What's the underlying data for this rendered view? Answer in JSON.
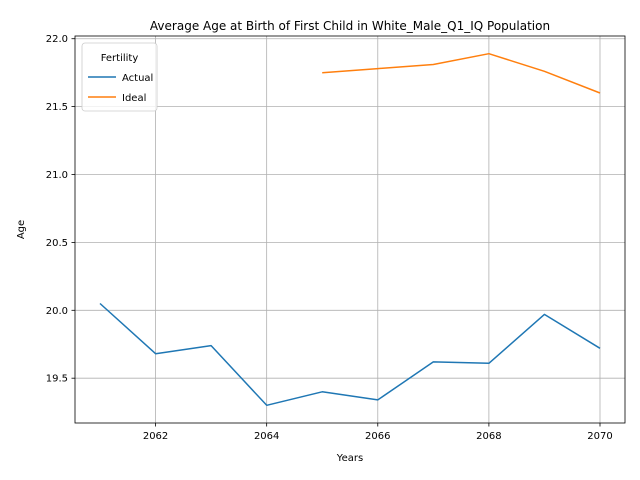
{
  "chart_data": {
    "type": "line",
    "title": "Average Age at Birth of First Child in White_Male_Q1_IQ Population",
    "xlabel": "Years",
    "ylabel": "Age",
    "xlim": [
      2060.55,
      2070.45
    ],
    "ylim": [
      19.17,
      22.02
    ],
    "xticks": [
      2062,
      2064,
      2066,
      2068,
      2070
    ],
    "yticks": [
      19.5,
      20.0,
      20.5,
      21.0,
      21.5,
      22.0
    ],
    "xtick_labels": [
      "2062",
      "2064",
      "2066",
      "2068",
      "2070"
    ],
    "ytick_labels": [
      "19.5",
      "20.0",
      "20.5",
      "21.0",
      "21.5",
      "22.0"
    ],
    "grid": true,
    "legend": {
      "title": "Fertility",
      "placement": "upper-left"
    },
    "series": [
      {
        "name": "Actual",
        "color": "#1f77b4",
        "x": [
          2061,
          2062,
          2063,
          2064,
          2065,
          2066,
          2067,
          2068,
          2069,
          2070
        ],
        "values": [
          20.05,
          19.68,
          19.74,
          19.3,
          19.4,
          19.34,
          19.62,
          19.61,
          19.97,
          19.72
        ]
      },
      {
        "name": "Ideal",
        "color": "#ff7f0e",
        "x": [
          2065,
          2066,
          2067,
          2068,
          2069,
          2070
        ],
        "values": [
          21.75,
          21.78,
          21.81,
          21.89,
          21.76,
          21.6
        ]
      }
    ]
  }
}
